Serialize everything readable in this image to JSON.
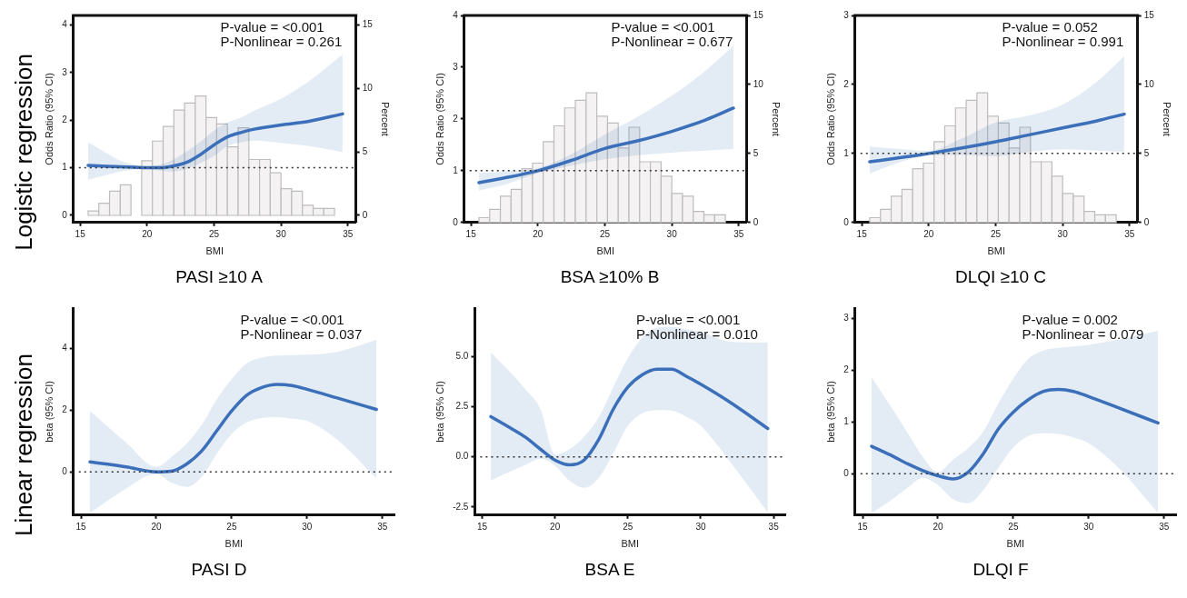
{
  "chart_data": [
    {
      "type": "line",
      "title": "PASI ≥10 A",
      "xlabel": "BMI",
      "ylabel": "Odds Ratio (95% CI)",
      "y2label": "Percent",
      "annotations": [
        "Logistic regression",
        "P-value = <0.001",
        "P-Nonlinear = 0.261"
      ],
      "xlim": [
        14.5,
        35.6
      ],
      "xticks": [
        15,
        20,
        25,
        30,
        35
      ],
      "ylim": [
        -0.15,
        4.2
      ],
      "yticks": [
        0,
        1,
        2,
        3,
        4
      ],
      "y2lim": [
        -0.56,
        15.75
      ],
      "y2ticks": [
        0,
        5,
        10,
        15
      ],
      "ref_lines": [
        {
          "axis": "y",
          "value": 1,
          "color": "#333333",
          "line_style": "dotted"
        }
      ],
      "series": [
        {
          "type": "histogram",
          "axis": "y2",
          "color": "#f4f2f2",
          "bins": [
            15.6,
            16.4,
            17.2,
            18.0,
            18.8,
            19.6,
            20.4,
            21.2,
            22.0,
            22.8,
            23.6,
            24.4,
            25.2,
            26.0,
            26.8,
            27.6,
            28.4,
            29.2,
            30.0,
            30.8,
            31.6,
            32.4,
            33.2,
            34.0
          ],
          "values": [
            0.35,
            0.95,
            1.9,
            2.4,
            null,
            4.3,
            5.85,
            7.0,
            8.3,
            8.85,
            9.4,
            7.7,
            7.2,
            5.4,
            6.9,
            4.4,
            4.4,
            3.35,
            2.1,
            1.9,
            0.8,
            0.55,
            0.55
          ]
        },
        {
          "color": "#3b6fba",
          "x": [
            15.6,
            17,
            18,
            19,
            20,
            21,
            22,
            23,
            24,
            25,
            26,
            27,
            28,
            30,
            32,
            34.6
          ],
          "values": [
            1.05,
            1.03,
            1.02,
            1.01,
            1.0,
            1.0,
            1.04,
            1.12,
            1.28,
            1.48,
            1.65,
            1.74,
            1.81,
            1.9,
            1.97,
            2.13
          ],
          "lower": [
            0.75,
            0.85,
            0.92,
            0.96,
            0.97,
            0.94,
            0.92,
            0.98,
            1.1,
            1.25,
            1.45,
            1.53,
            1.57,
            1.52,
            1.46,
            1.33
          ],
          "upper": [
            1.53,
            1.3,
            1.15,
            1.07,
            1.03,
            1.07,
            1.18,
            1.35,
            1.55,
            1.78,
            1.95,
            2.05,
            2.2,
            2.45,
            2.8,
            3.38
          ]
        }
      ]
    },
    {
      "type": "line",
      "title": "BSA ≥10% B",
      "xlabel": "BMI",
      "ylabel": "Odds Ratio (95% CI)",
      "y2label": "Percent",
      "annotations": [
        "P-value = <0.001",
        "P-Nonlinear = 0.677"
      ],
      "xlim": [
        14.5,
        35.6
      ],
      "xticks": [
        15,
        20,
        25,
        30,
        35
      ],
      "ylim": [
        0,
        4
      ],
      "yticks": [
        0,
        1,
        2,
        3,
        4
      ],
      "y2lim": [
        0,
        15
      ],
      "y2ticks": [
        0,
        5,
        10,
        15
      ],
      "ref_lines": [
        {
          "axis": "y",
          "value": 1,
          "color": "#333333",
          "line_style": "dotted"
        }
      ],
      "series": [
        {
          "type": "histogram",
          "axis": "y2",
          "color": "#f4f2f2",
          "bins": [
            15.6,
            16.4,
            17.2,
            18.0,
            18.8,
            19.6,
            20.4,
            21.2,
            22.0,
            22.8,
            23.6,
            24.4,
            25.2,
            26.0,
            26.8,
            27.6,
            28.4,
            29.2,
            30.0,
            30.8,
            31.6,
            32.4,
            33.2,
            34.0
          ],
          "values": [
            0.35,
            0.95,
            1.9,
            2.4,
            3.9,
            4.3,
            5.85,
            7.0,
            8.3,
            8.85,
            9.4,
            7.7,
            7.2,
            5.4,
            6.9,
            4.4,
            4.4,
            3.35,
            2.1,
            1.9,
            0.8,
            0.55,
            0.55
          ]
        },
        {
          "color": "#3b6fba",
          "x": [
            15.6,
            17.5,
            20,
            22.5,
            25,
            27.5,
            30,
            32.5,
            34.6
          ],
          "values": [
            0.77,
            0.86,
            1.0,
            1.2,
            1.43,
            1.58,
            1.76,
            1.98,
            2.21
          ],
          "lower": [
            0.62,
            0.73,
            0.95,
            1.1,
            1.22,
            1.3,
            1.35,
            1.39,
            1.42
          ],
          "upper": [
            0.96,
            0.99,
            1.05,
            1.32,
            1.7,
            2.05,
            2.45,
            2.93,
            3.41
          ]
        }
      ]
    },
    {
      "type": "line",
      "title": "DLQI ≥10 C",
      "xlabel": "BMI",
      "ylabel": "Odds Ratio (95% CI)",
      "y2label": "Percent",
      "annotations": [
        "P-value = 0.052",
        "P-Nonlinear = 0.991"
      ],
      "xlim": [
        14.5,
        35.6
      ],
      "xticks": [
        15,
        20,
        25,
        30,
        35
      ],
      "ylim": [
        0,
        3
      ],
      "yticks": [
        0,
        1,
        2,
        3
      ],
      "y2lim": [
        0,
        15
      ],
      "y2ticks": [
        0,
        5,
        10,
        15
      ],
      "ref_lines": [
        {
          "axis": "y",
          "value": 1,
          "color": "#333333",
          "line_style": "dotted"
        }
      ],
      "series": [
        {
          "type": "histogram",
          "axis": "y2",
          "color": "#f4f2f2",
          "bins": [
            15.6,
            16.4,
            17.2,
            18.0,
            18.8,
            19.6,
            20.4,
            21.2,
            22.0,
            22.8,
            23.6,
            24.4,
            25.2,
            26.0,
            26.8,
            27.6,
            28.4,
            29.2,
            30.0,
            30.8,
            31.6,
            32.4,
            33.2,
            34.0
          ],
          "values": [
            0.35,
            0.95,
            1.9,
            2.4,
            3.9,
            4.3,
            5.85,
            7.0,
            8.3,
            8.85,
            9.4,
            7.7,
            7.2,
            5.4,
            6.9,
            4.4,
            4.4,
            3.35,
            2.1,
            1.9,
            0.8,
            0.55,
            0.55
          ]
        },
        {
          "color": "#3b6fba",
          "x": [
            15.6,
            17.5,
            20,
            22.5,
            25,
            27.5,
            30,
            32.5,
            34.6
          ],
          "values": [
            0.88,
            0.93,
            1.0,
            1.08,
            1.17,
            1.27,
            1.37,
            1.47,
            1.57
          ],
          "lower": [
            0.71,
            0.85,
            0.97,
            0.98,
            0.96,
            1.02,
            1.06,
            1.04,
            1.02
          ],
          "upper": [
            1.1,
            1.07,
            1.04,
            1.22,
            1.45,
            1.55,
            1.71,
            2.03,
            2.41
          ]
        }
      ]
    },
    {
      "type": "line",
      "title": "PASI D",
      "xlabel": "BMI",
      "ylabel": "beta (95% CI)",
      "annotations": [
        "Linear regression",
        "P-value = <0.001",
        "P-Nonlinear = 0.037"
      ],
      "xlim": [
        14.5,
        35.8
      ],
      "xticks": [
        15,
        20,
        25,
        30,
        35
      ],
      "ylim": [
        -1.4,
        5.3
      ],
      "yticks": [
        0,
        2,
        4
      ],
      "ref_lines": [
        {
          "axis": "y",
          "value": 0,
          "color": "#333333",
          "line_style": "dotted"
        }
      ],
      "series": [
        {
          "color": "#3b6fba",
          "x": [
            15.6,
            18,
            20,
            21,
            22,
            23,
            24,
            25,
            26,
            27,
            28,
            29,
            30,
            32,
            34.6
          ],
          "values": [
            0.32,
            0.16,
            0.0,
            0.02,
            0.25,
            0.67,
            1.32,
            1.97,
            2.48,
            2.73,
            2.83,
            2.79,
            2.67,
            2.39,
            2.02
          ],
          "lower": [
            -1.33,
            -0.54,
            -0.07,
            -0.35,
            -0.49,
            -0.17,
            0.58,
            1.23,
            1.6,
            1.74,
            1.77,
            1.72,
            1.65,
            1.04,
            -0.21
          ],
          "upper": [
            1.97,
            0.95,
            0.16,
            0.48,
            0.9,
            1.51,
            2.34,
            3.0,
            3.51,
            3.7,
            3.76,
            3.78,
            3.79,
            3.88,
            4.27
          ]
        }
      ]
    },
    {
      "type": "line",
      "title": "BSA E",
      "xlabel": "BMI",
      "ylabel": "beta (95% CI)",
      "annotations": [
        "P-value = <0.001",
        "P-Nonlinear = 0.010"
      ],
      "xlim": [
        14.5,
        35.8
      ],
      "xticks": [
        15,
        20,
        25,
        30,
        35
      ],
      "ylim": [
        -2.9,
        7.4
      ],
      "yticks": [
        {
          "value": -2.5,
          "label": "-2.5"
        },
        {
          "value": 0,
          "label": "0.0"
        },
        {
          "value": 2.5,
          "label": "2.5"
        },
        {
          "value": 5,
          "label": "5.0"
        }
      ],
      "ref_lines": [
        {
          "axis": "y",
          "value": 0,
          "color": "#333333",
          "line_style": "dotted"
        }
      ],
      "series": [
        {
          "color": "#3b6fba",
          "x": [
            15.6,
            17,
            18,
            19,
            20,
            21,
            22,
            23,
            24,
            25,
            26,
            27,
            28,
            29,
            30,
            32,
            34.6
          ],
          "values": [
            2.0,
            1.41,
            0.96,
            0.38,
            -0.16,
            -0.4,
            -0.16,
            0.86,
            2.37,
            3.47,
            4.09,
            4.36,
            4.36,
            4.01,
            3.61,
            2.72,
            1.41
          ],
          "lower": [
            -1.17,
            -0.71,
            -0.4,
            -0.1,
            -0.44,
            -1.19,
            -1.54,
            -1.06,
            0.18,
            1.55,
            2.17,
            2.33,
            2.3,
            2.0,
            1.55,
            -0.23,
            -2.77
          ],
          "upper": [
            5.19,
            4.16,
            3.33,
            2.37,
            0.11,
            0.38,
            1.0,
            1.96,
            3.47,
            4.91,
            5.94,
            6.42,
            6.46,
            6.35,
            6.21,
            5.73,
            5.69
          ]
        }
      ]
    },
    {
      "type": "line",
      "title": "DLQI F",
      "xlabel": "BMI",
      "ylabel": "beta (95% CI)",
      "annotations": [
        "P-value = 0.002",
        "P-Nonlinear = 0.079"
      ],
      "xlim": [
        14.5,
        35.8
      ],
      "xticks": [
        15,
        20,
        25,
        30,
        35
      ],
      "ylim": [
        -0.8,
        3.2
      ],
      "yticks": [
        0,
        1,
        2,
        3
      ],
      "ref_lines": [
        {
          "axis": "y",
          "value": 0,
          "color": "#333333",
          "line_style": "dotted"
        }
      ],
      "series": [
        {
          "color": "#3b6fba",
          "x": [
            15.6,
            17,
            18,
            19,
            20,
            21,
            22,
            23,
            24,
            25,
            26,
            27,
            28,
            29,
            30,
            32,
            34.6
          ],
          "values": [
            0.53,
            0.34,
            0.19,
            0.06,
            -0.04,
            -0.1,
            0.03,
            0.38,
            0.86,
            1.19,
            1.43,
            1.59,
            1.63,
            1.59,
            1.49,
            1.27,
            0.98
          ],
          "lower": [
            -0.76,
            -0.49,
            -0.27,
            -0.08,
            -0.22,
            -0.49,
            -0.57,
            -0.32,
            0.11,
            0.51,
            0.73,
            0.78,
            0.77,
            0.7,
            0.59,
            0.11,
            -0.76
          ],
          "upper": [
            1.86,
            1.24,
            0.78,
            0.32,
            0.03,
            0.27,
            0.49,
            0.81,
            1.35,
            1.84,
            2.22,
            2.38,
            2.43,
            2.46,
            2.49,
            2.59,
            2.76
          ]
        }
      ]
    }
  ]
}
